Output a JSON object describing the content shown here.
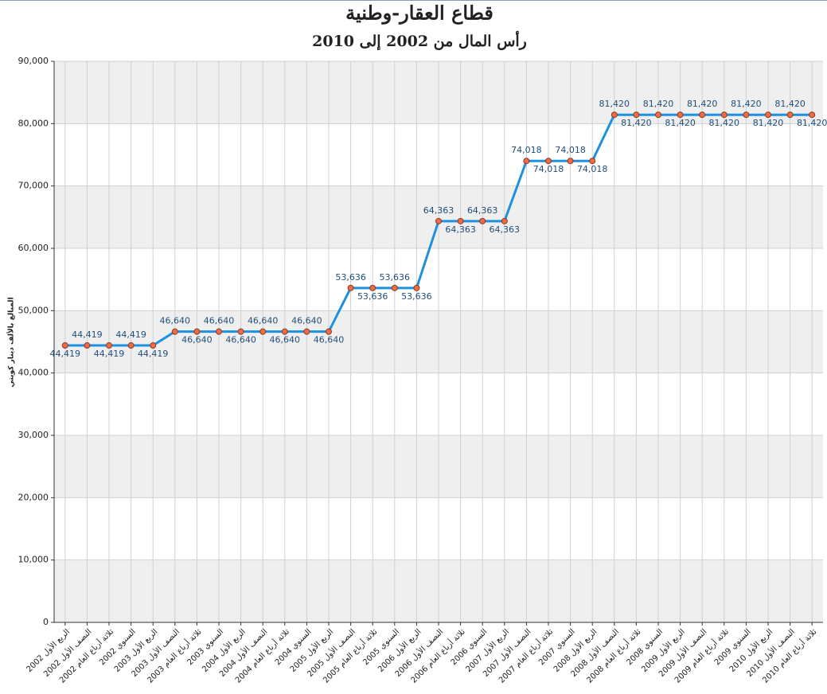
{
  "chart_data": {
    "type": "line",
    "title": "قطاع العقار-وطنية",
    "subtitle": "رأس المال من 2002 إلى 2010",
    "y_label": "المبالغ بالألف دينار كويتي",
    "categories": [
      "الربع الأول 2002",
      "النصف الأول 2002",
      "ثلاثة أرباع العام 2002",
      "السنوي 2002",
      "الربع الأول 2003",
      "النصف الأول 2003",
      "ثلاثة أرباع العام 2003",
      "السنوي 2003",
      "الربع الأول 2004",
      "النصف الأول 2004",
      "ثلاثة أرباع العام 2004",
      "السنوي 2004",
      "الربع الأول 2005",
      "النصف الأول 2005",
      "ثلاثة أرباع العام 2005",
      "السنوي 2005",
      "الربع الأول 2006",
      "النصف الأول 2006",
      "ثلاثة أرباع العام 2006",
      "السنوي 2006",
      "الربع الأول 2007",
      "النصف الأول 2007",
      "ثلاثة أرباع العام 2007",
      "السنوي 2007",
      "الربع الأول 2008",
      "النصف الأول 2008",
      "ثلاثة أرباع العام 2008",
      "السنوي 2008",
      "الربع الأول 2009",
      "النصف الأول 2009",
      "ثلاثة أرباع العام 2009",
      "السنوي 2009",
      "الربع الأول 2010",
      "النصف الأول 2010",
      "ثلاثة أرباع العام 2010"
    ],
    "values": [
      44419,
      44419,
      44419,
      44419,
      44419,
      46640,
      46640,
      46640,
      46640,
      46640,
      46640,
      46640,
      46640,
      53636,
      53636,
      53636,
      53636,
      64363,
      64363,
      64363,
      64363,
      74018,
      74018,
      74018,
      74018,
      81420,
      81420,
      81420,
      81420,
      81420,
      81420,
      81420,
      81420,
      81420,
      81420
    ],
    "value_labels": [
      "44,419",
      "44,419",
      "44,419",
      "44,419",
      "44,419",
      "46,640",
      "46,640",
      "46,640",
      "46,640",
      "46,640",
      "46,640",
      "46,640",
      "46,640",
      "53,636",
      "53,636",
      "53,636",
      "53,636",
      "64,363",
      "64,363",
      "64,363",
      "64,363",
      "74,018",
      "74,018",
      "74,018",
      "74,018",
      "81,420",
      "81,420",
      "81,420",
      "81,420",
      "81,420",
      "81,420",
      "81,420",
      "81,420",
      "81,420",
      "81,420"
    ],
    "color": "#1e90e0",
    "marker_color": "#f26b45",
    "ylim": [
      0,
      90000
    ],
    "yticks": [
      0,
      {
        "value": 10000,
        "label": "10,000"
      },
      {
        "value": 20000,
        "label": "20,000"
      },
      {
        "value": 30000,
        "label": "30,000"
      },
      {
        "value": 40000,
        "label": "40,000"
      },
      {
        "value": 50000,
        "label": "50,000"
      },
      {
        "value": 60000,
        "label": "60,000"
      },
      {
        "value": 70000,
        "label": "70,000"
      },
      {
        "value": 80000,
        "label": "80,000"
      },
      {
        "value": 90000,
        "label": "90,000"
      }
    ],
    "grid": true
  }
}
